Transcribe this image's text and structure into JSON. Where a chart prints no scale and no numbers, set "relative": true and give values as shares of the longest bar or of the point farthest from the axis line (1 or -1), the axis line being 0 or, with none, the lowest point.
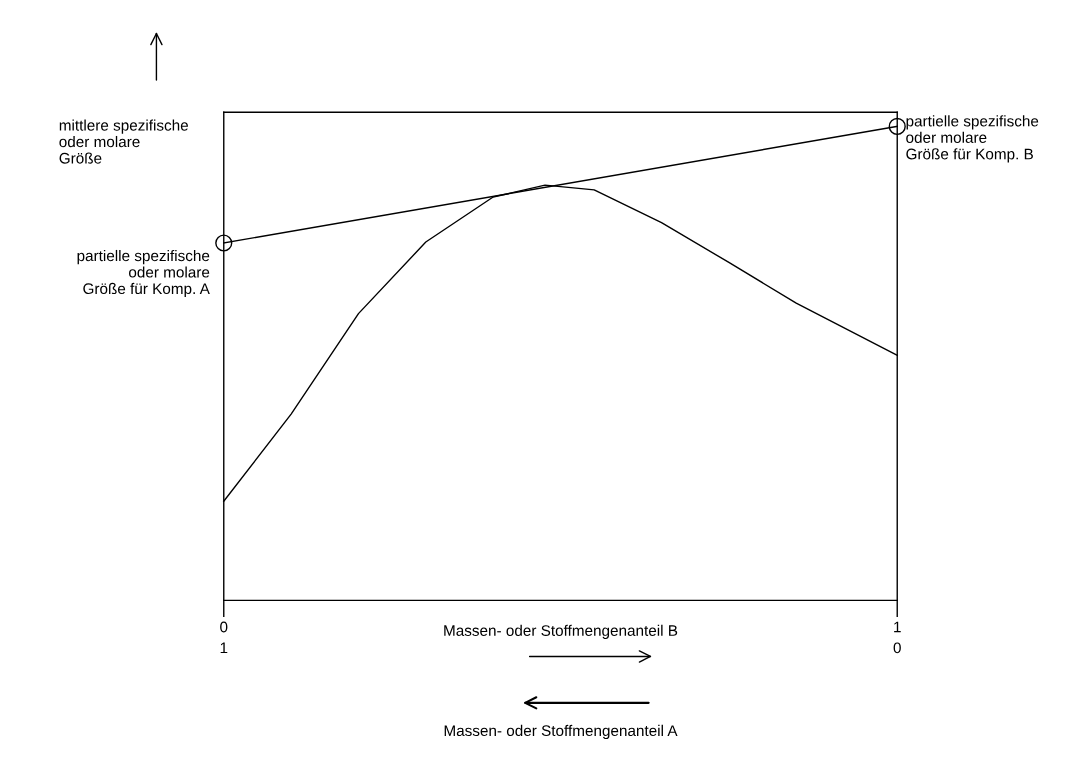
{
  "chart_data": {
    "type": "line",
    "relative": true,
    "ylabel": "mittlere spezifische\noder molare\nGröße",
    "xlabel": "Massen- oder Stoffmengenanteil B",
    "xlim": [
      0,
      1
    ],
    "xticks": [
      0,
      1
    ],
    "x2lim": [
      1,
      0
    ],
    "x2ticks": [
      1,
      0
    ],
    "series": [
      {
        "color": "#000000",
        "x": [
          0,
          0.1,
          0.2,
          0.3,
          0.4,
          0.477,
          0.55,
          0.65,
          0.75,
          0.85,
          1
        ],
        "values": [
          0.209,
          0.393,
          0.605,
          0.756,
          0.851,
          0.876,
          0.866,
          0.797,
          0.713,
          0.627,
          0.517
        ]
      },
      {
        "color": "#000000",
        "x": [
          0,
          1
        ],
        "values": [
          0.754,
          1
        ]
      },
      {
        "type": "scatter",
        "marker": "circle",
        "color": "#000000",
        "x": [
          0,
          1
        ],
        "values": [
          0.754,
          1
        ]
      }
    ],
    "annotations": [
      {
        "text": "partielle spezifische\noder molare\nGröße für Komp. A",
        "x": 0,
        "y": 0.754
      },
      {
        "text": "partielle spezifische\noder molare\nGröße für Komp. B",
        "x": 1,
        "y": 1
      },
      "Massen- oder Stoffmengenanteil A"
    ],
    "grid": false,
    "legend": false
  }
}
